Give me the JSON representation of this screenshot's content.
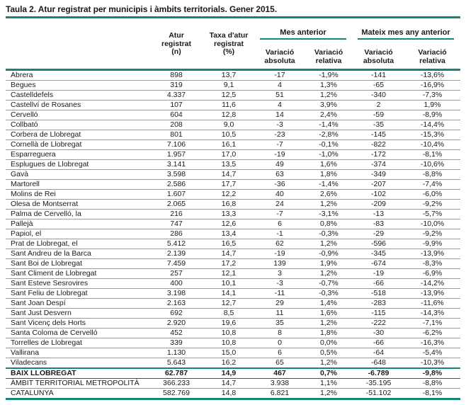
{
  "title": "Taula 2. Atur registrat per municipis i àmbits territorials. Gener 2015.",
  "colors": {
    "accent_teal": "#17857B",
    "row_separator": "#9B9B9B",
    "summary_separator": "#4D4D4D",
    "text": "#1A1A1A"
  },
  "table": {
    "column_headers": {
      "municipality": "",
      "atur": "Atur\nregistrat\n(n)",
      "taxa": "Taxa d'atur\nregistrat\n(%)"
    },
    "groups": [
      {
        "label": "Mes anterior",
        "subcolumns": [
          "Variació\nabsoluta",
          "Variació\nrelativa"
        ]
      },
      {
        "label": "Mateix mes any anterior",
        "subcolumns": [
          "Variació\nabsoluta",
          "Variació\nrelativa"
        ]
      }
    ],
    "rows": [
      {
        "municipality": "Abrera",
        "values": [
          "898",
          "13,7",
          "-17",
          "-1,9%",
          "-141",
          "-13,6%"
        ]
      },
      {
        "municipality": "Begues",
        "values": [
          "319",
          "9,1",
          "4",
          "1,3%",
          "-65",
          "-16,9%"
        ]
      },
      {
        "municipality": "Castelldefels",
        "values": [
          "4.337",
          "12,5",
          "51",
          "1,2%",
          "-340",
          "-7,3%"
        ]
      },
      {
        "municipality": "Castellví de Rosanes",
        "values": [
          "107",
          "11,6",
          "4",
          "3,9%",
          "2",
          "1,9%"
        ]
      },
      {
        "municipality": "Cervelló",
        "values": [
          "604",
          "12,8",
          "14",
          "2,4%",
          "-59",
          "-8,9%"
        ]
      },
      {
        "municipality": "Collbató",
        "values": [
          "208",
          "9,0",
          "-3",
          "-1,4%",
          "-35",
          "-14,4%"
        ]
      },
      {
        "municipality": "Corbera de Llobregat",
        "values": [
          "801",
          "10,5",
          "-23",
          "-2,8%",
          "-145",
          "-15,3%"
        ]
      },
      {
        "municipality": "Cornellà de Llobregat",
        "values": [
          "7.106",
          "16,1",
          "-7",
          "-0,1%",
          "-822",
          "-10,4%"
        ]
      },
      {
        "municipality": "Esparreguera",
        "values": [
          "1.957",
          "17,0",
          "-19",
          "-1,0%",
          "-172",
          "-8,1%"
        ]
      },
      {
        "municipality": "Esplugues de Llobregat",
        "values": [
          "3.141",
          "13,5",
          "49",
          "1,6%",
          "-374",
          "-10,6%"
        ]
      },
      {
        "municipality": "Gavà",
        "values": [
          "3.598",
          "14,7",
          "63",
          "1,8%",
          "-349",
          "-8,8%"
        ]
      },
      {
        "municipality": "Martorell",
        "values": [
          "2.586",
          "17,7",
          "-36",
          "-1,4%",
          "-207",
          "-7,4%"
        ]
      },
      {
        "municipality": "Molins de Rei",
        "values": [
          "1.607",
          "12,2",
          "40",
          "2,6%",
          "-102",
          "-6,0%"
        ]
      },
      {
        "municipality": "Olesa de Montserrat",
        "values": [
          "2.065",
          "16,8",
          "24",
          "1,2%",
          "-209",
          "-9,2%"
        ]
      },
      {
        "municipality": "Palma de Cervelló, la",
        "values": [
          "216",
          "13,3",
          "-7",
          "-3,1%",
          "-13",
          "-5,7%"
        ]
      },
      {
        "municipality": "Pallejà",
        "values": [
          "747",
          "12,6",
          "6",
          "0,8%",
          "-83",
          "-10,0%"
        ]
      },
      {
        "municipality": "Papiol, el",
        "values": [
          "286",
          "13,4",
          "-1",
          "-0,3%",
          "-29",
          "-9,2%"
        ]
      },
      {
        "municipality": "Prat de Llobregat, el",
        "values": [
          "5.412",
          "16,5",
          "62",
          "1,2%",
          "-596",
          "-9,9%"
        ]
      },
      {
        "municipality": "Sant Andreu de la Barca",
        "values": [
          "2.139",
          "14,7",
          "-19",
          "-0,9%",
          "-345",
          "-13,9%"
        ]
      },
      {
        "municipality": "Sant Boi de Llobregat",
        "values": [
          "7.459",
          "17,2",
          "139",
          "1,9%",
          "-674",
          "-8,3%"
        ]
      },
      {
        "municipality": "Sant Climent de Llobregat",
        "values": [
          "257",
          "12,1",
          "3",
          "1,2%",
          "-19",
          "-6,9%"
        ]
      },
      {
        "municipality": "Sant Esteve Sesrovires",
        "values": [
          "400",
          "10,1",
          "-3",
          "-0,7%",
          "-66",
          "-14,2%"
        ]
      },
      {
        "municipality": "Sant Feliu de Llobregat",
        "values": [
          "3.198",
          "14,1",
          "-11",
          "-0,3%",
          "-518",
          "-13,9%"
        ]
      },
      {
        "municipality": "Sant Joan Despí",
        "values": [
          "2.163",
          "12,7",
          "29",
          "1,4%",
          "-283",
          "-11,6%"
        ]
      },
      {
        "municipality": "Sant Just Desvern",
        "values": [
          "692",
          "8,5",
          "11",
          "1,6%",
          "-115",
          "-14,3%"
        ]
      },
      {
        "municipality": "Sant Vicenç dels Horts",
        "values": [
          "2.920",
          "19,6",
          "35",
          "1,2%",
          "-222",
          "-7,1%"
        ]
      },
      {
        "municipality": "Santa Coloma de Cervelló",
        "values": [
          "452",
          "10,8",
          "8",
          "1,8%",
          "-30",
          "-6,2%"
        ]
      },
      {
        "municipality": "Torrelles de Llobregat",
        "values": [
          "339",
          "10,8",
          "0",
          "0,0%",
          "-66",
          "-16,3%"
        ]
      },
      {
        "municipality": "Vallirana",
        "values": [
          "1.130",
          "15,0",
          "6",
          "0,5%",
          "-64",
          "-5,4%"
        ]
      },
      {
        "municipality": "Viladecans",
        "values": [
          "5.643",
          "16,2",
          "65",
          "1,2%",
          "-648",
          "-10,3%"
        ]
      }
    ],
    "summary_rows": [
      {
        "municipality": "BAIX LLOBREGAT",
        "values": [
          "62.787",
          "14,9",
          "467",
          "0,7%",
          "-6.789",
          "-9,8%"
        ],
        "bold": true
      },
      {
        "municipality": "ÀMBIT TERRITORIAL METROPOLITÀ",
        "values": [
          "366.233",
          "14,7",
          "3.938",
          "1,1%",
          "-35.195",
          "-8,8%"
        ],
        "bold": false
      },
      {
        "municipality": "CATALUNYA",
        "values": [
          "582.769",
          "14,8",
          "6.821",
          "1,2%",
          "-51.102",
          "-8,1%"
        ],
        "bold": false
      }
    ]
  }
}
